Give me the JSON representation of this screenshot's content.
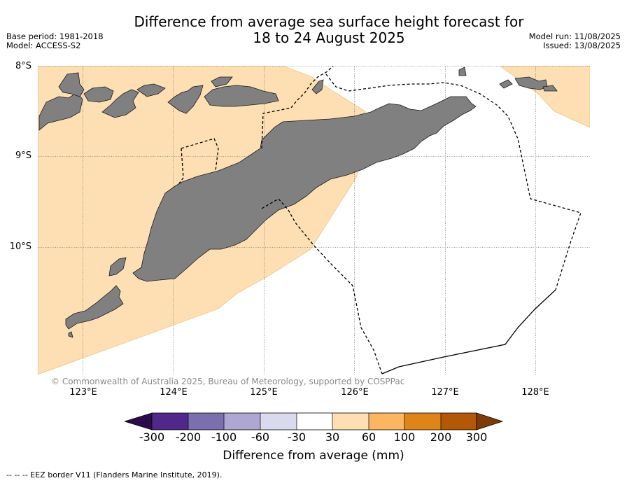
{
  "header": {
    "title_line1": "Difference from average sea surface height forecast for",
    "title_line2": "18 to 24 August 2025",
    "base_period": "Base period: 1981-2018",
    "model": "Model: ACCESS-S2",
    "model_run": "Model run: 11/08/2025",
    "issued": "Issued: 13/08/2025"
  },
  "map": {
    "lat_labels": [
      "8°S",
      "9°S",
      "10°S"
    ],
    "lon_labels": [
      "123°E",
      "124°E",
      "125°E",
      "126°E",
      "127°E",
      "128°E"
    ],
    "extent": {
      "lon_min": 122.55,
      "lon_max": 128.6,
      "lat_north": -8.0,
      "lat_south": -11.4
    },
    "land_color": "#808080",
    "anomaly_color": "#fddfb3",
    "copyright": "© Commonwealth of Australia 2025, Bureau of Meteorology, supported by COSPPac"
  },
  "colorbar": {
    "ticks": [
      "-300",
      "-200",
      "-100",
      "-60",
      "-30",
      "30",
      "60",
      "100",
      "200",
      "300"
    ],
    "colors": [
      "#2b0c4b",
      "#50288a",
      "#7c6fae",
      "#ada7d1",
      "#d9daeb",
      "#ffffff",
      "#fddfb3",
      "#fbb661",
      "#df8419",
      "#b35807",
      "#7f3b08"
    ],
    "label": "Difference from average (mm)"
  },
  "footnote": "--  --  -- EEZ border V11 (Flanders Marine Institute, 2019)."
}
